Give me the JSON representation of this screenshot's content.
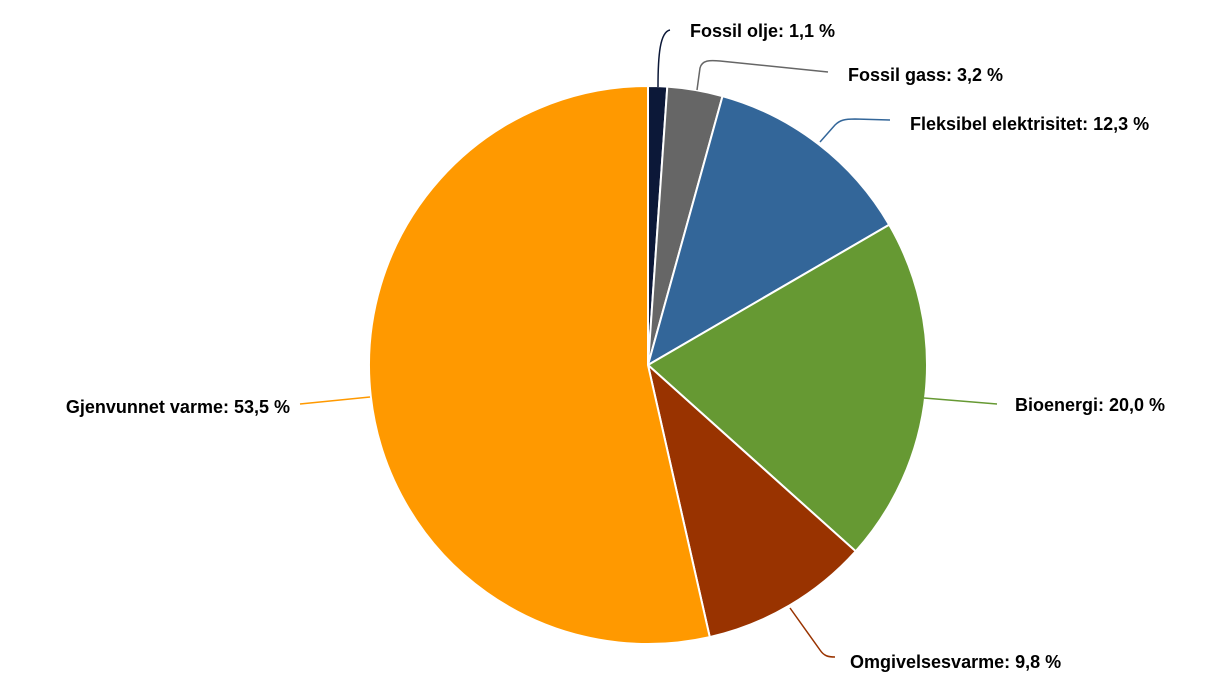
{
  "chart_data": {
    "type": "pie",
    "values": [
      1.1,
      3.2,
      12.3,
      20.0,
      9.8,
      53.5
    ],
    "value_labels": [
      "Fossil olje: 1,1 %",
      "Fossil gass: 3,2 %",
      "Fleksibel elektrisitet: 12,3 %",
      "Bioenergi: 20,0 %",
      "Omgivelsesvarme: 9,8 %",
      "Gjenvunnet varme: 53,5 %"
    ],
    "colors": [
      "#0c1838",
      "#666666",
      "#336699",
      "#669933",
      "#993300",
      "#ff9900"
    ]
  }
}
